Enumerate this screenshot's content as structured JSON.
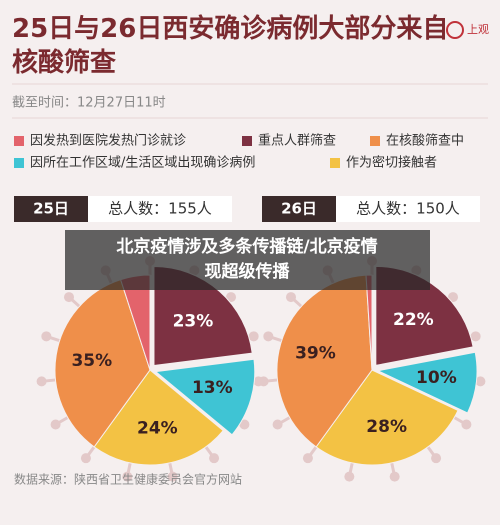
{
  "title": "25日与26日西安确诊病例大部分来自核酸筛查",
  "logo": "上观",
  "subtitle": "截至时间：12月27日11时",
  "banner": [
    "北京疫情涉及多条传播链/北京疫情",
    "现超级传播"
  ],
  "source": "数据来源：陕西省卫生健康委员会官方网站",
  "chart_data": [
    {
      "type": "pie",
      "title": "25日",
      "subtitle": "总人数：155人",
      "categories": [
        "重点人群筛查",
        "因所在工作区域/生活区域出现确诊病例",
        "作为密切接触者",
        "在核酸筛查中",
        "因发热到医院发热门诊就诊"
      ],
      "values": [
        23,
        13,
        24,
        35,
        5
      ],
      "value_labels": [
        "23%",
        "13%",
        "24%",
        "35%",
        null
      ],
      "colors": [
        "#7d3142",
        "#3fc4d4",
        "#f3c244",
        "#ef8f4a",
        "#e3636b"
      ]
    },
    {
      "type": "pie",
      "title": "26日",
      "subtitle": "总人数：150人",
      "categories": [
        "重点人群筛查",
        "因所在工作区域/生活区域出现确诊病例",
        "作为密切接触者",
        "在核酸筛查中",
        "因发热到医院发热门诊就诊"
      ],
      "values": [
        22,
        10,
        28,
        39,
        1
      ],
      "value_labels": [
        "22%",
        "10%",
        "28%",
        "39%",
        null
      ],
      "colors": [
        "#7d3142",
        "#3fc4d4",
        "#f3c244",
        "#ef8f4a",
        "#e3636b"
      ]
    }
  ]
}
